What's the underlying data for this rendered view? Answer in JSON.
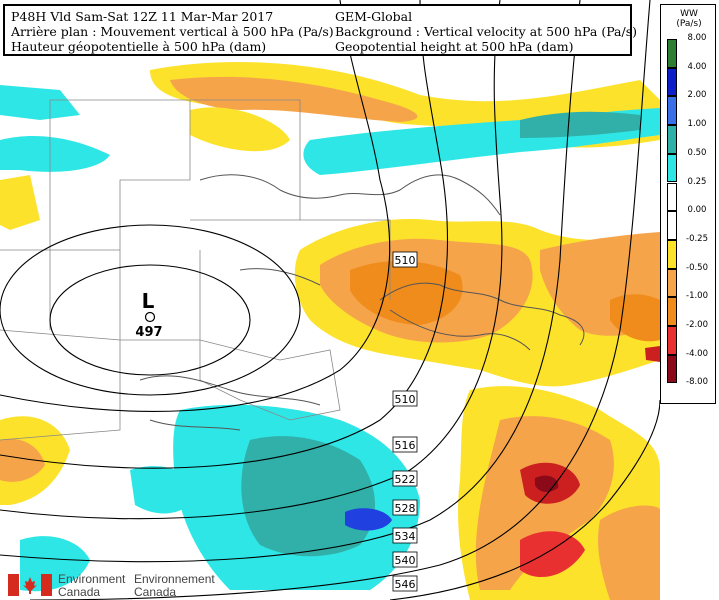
{
  "header": {
    "left": [
      "P48H Vld Sam-Sat 12Z 11 Mar-Mar 2017",
      "Arrière plan : Mouvement vertical à 500 hPa (Pa/s)",
      "Hauteur géopotentielle à 500 hPa (dam)"
    ],
    "right": [
      "GEM-Global",
      "Background : Vertical velocity at 500 hPa (Pa/s)",
      "Geopotential height at 500 hPa (dam)"
    ]
  },
  "legend": {
    "title": "WW",
    "unit": "(Pa/s)",
    "items": [
      {
        "label": "8.00",
        "color": "#2e7d32"
      },
      {
        "label": "4.00",
        "color": "#0d1fc8"
      },
      {
        "label": "2.00",
        "color": "#3a6fe8"
      },
      {
        "label": "1.00",
        "color": "#30b0a8"
      },
      {
        "label": "0.50",
        "color": "#2ee6e6"
      },
      {
        "label": "0.25",
        "color": "#ffffff"
      },
      {
        "label": "0.00",
        "color": "#ffffff"
      },
      {
        "label": "-0.25",
        "color": "#fde22c"
      },
      {
        "label": "-0.50",
        "color": "#f5a44a"
      },
      {
        "label": "-1.00",
        "color": "#f08c1c"
      },
      {
        "label": "-2.00",
        "color": "#e83030"
      },
      {
        "label": "-4.00",
        "color": "#8b0a1a"
      },
      {
        "label": "-8.00",
        "color": "#8b0a1a"
      }
    ]
  },
  "contours": [
    "510",
    "510",
    "516",
    "522",
    "528",
    "534",
    "540",
    "546"
  ],
  "low": {
    "symbol": "L",
    "value": "497"
  },
  "logo": {
    "en_1": "Environment",
    "en_2": "Canada",
    "fr_1": "Environnement",
    "fr_2": "Canada"
  }
}
